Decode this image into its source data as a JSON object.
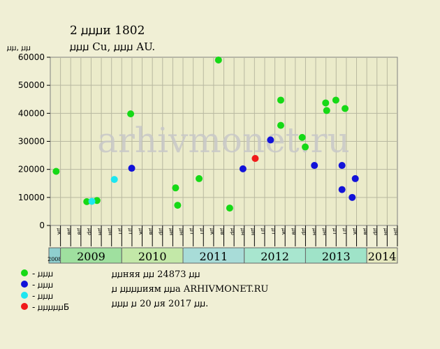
{
  "chart_data": {
    "type": "scatter",
    "title": "2 ꙡꙡꙡи 1802",
    "subtitle": "ꙡꙡꙡ Cu, ꙡꙡꙡ AU.",
    "ylabel": "ꙡꙡ, ꙡꙡ",
    "ylim": [
      0,
      60000
    ],
    "yticks": [
      0,
      10000,
      20000,
      30000,
      40000,
      50000,
      60000
    ],
    "grid": true,
    "watermark": "arhivmonet.ru",
    "month_labels": [
      "ꙡк",
      "ꙡв",
      "ꙡв",
      "ꙡр",
      "ꙡн",
      "ꙡн",
      "ꙡт",
      "ꙡт",
      "ꙡк",
      "ꙡв",
      "ꙡр",
      "ꙡн",
      "ꙡн",
      "ꙡт",
      "ꙡт",
      "ꙡк",
      "ꙡв",
      "ꙡр",
      "ꙡн",
      "ꙡн",
      "ꙡт",
      "ꙡт",
      "ꙡк",
      "ꙡв",
      "ꙡр",
      "ꙡн",
      "ꙡн",
      "ꙡт",
      "ꙡт",
      "ꙡк",
      "ꙡв",
      "ꙡр",
      "ꙡн",
      "ꙡн",
      "ꙡт",
      "ꙡт",
      "ꙡк",
      "ꙡв",
      "ꙡр",
      "ꙡн",
      "ꙡн",
      "ꙡт",
      "ꙡт",
      "ꙡк",
      "ꙡв",
      "ꙡр",
      "ꙡн",
      "ꙡн",
      "ꙡт",
      "ꙡт",
      "ꙡк",
      "ꙡв",
      "ꙡр",
      "ꙡн"
    ],
    "years": [
      {
        "label": "2008",
        "start": 0,
        "span": 1,
        "color": "#8fcfcf"
      },
      {
        "label": "2009",
        "start": 1,
        "span": 6,
        "color": "#9fe09f"
      },
      {
        "label": "2010",
        "start": 7,
        "span": 6,
        "color": "#c3e8a8"
      },
      {
        "label": "2011",
        "start": 13,
        "span": 6,
        "color": "#a8dcd8"
      },
      {
        "label": "2012",
        "start": 19,
        "span": 6,
        "color": "#a8e6cf"
      },
      {
        "label": "2013",
        "start": 25,
        "span": 6,
        "color": "#9fe3c8"
      },
      {
        "label": "2014",
        "start": 31,
        "span": 3,
        "color": "#e6e9bf"
      }
    ],
    "series": [
      {
        "name": "ꙡꙡꙡ",
        "color": "#16d916",
        "points": [
          {
            "x": 0.3,
            "y": 19300
          },
          {
            "x": 3.3,
            "y": 8500
          },
          {
            "x": 4.3,
            "y": 8900
          },
          {
            "x": 7.6,
            "y": 39800
          },
          {
            "x": 12.0,
            "y": 13400
          },
          {
            "x": 12.2,
            "y": 7200
          },
          {
            "x": 14.3,
            "y": 16700
          },
          {
            "x": 16.2,
            "y": 59000
          },
          {
            "x": 17.3,
            "y": 6200
          },
          {
            "x": 22.3,
            "y": 44700
          },
          {
            "x": 22.3,
            "y": 35700
          },
          {
            "x": 24.4,
            "y": 31400
          },
          {
            "x": 24.7,
            "y": 28000
          },
          {
            "x": 26.7,
            "y": 43700
          },
          {
            "x": 26.8,
            "y": 41000
          },
          {
            "x": 27.7,
            "y": 44700
          },
          {
            "x": 28.6,
            "y": 41700
          }
        ]
      },
      {
        "name": "ꙡꙡꙡ",
        "color": "#1212d9",
        "points": [
          {
            "x": 7.7,
            "y": 20400
          },
          {
            "x": 18.6,
            "y": 20200
          },
          {
            "x": 21.3,
            "y": 30500
          },
          {
            "x": 25.6,
            "y": 21400
          },
          {
            "x": 28.3,
            "y": 21400
          },
          {
            "x": 28.3,
            "y": 12800
          },
          {
            "x": 29.3,
            "y": 10000
          },
          {
            "x": 29.6,
            "y": 16700
          }
        ]
      },
      {
        "name": "ꙡꙡꙡ",
        "color": "#1ee6f0",
        "points": [
          {
            "x": 3.8,
            "y": 8600
          },
          {
            "x": 6.0,
            "y": 16400
          }
        ]
      },
      {
        "name": "ꙡꙡꙡꙡꙡБ",
        "color": "#f01a1a",
        "points": [
          {
            "x": 19.8,
            "y": 23900
          }
        ]
      }
    ]
  },
  "legend": [
    {
      "label": "- ꙡꙡꙡ",
      "color": "#16d916"
    },
    {
      "label": "- ꙡꙡꙡ",
      "color": "#1212d9"
    },
    {
      "label": "- ꙡꙡꙡ",
      "color": "#1ee6f0"
    },
    {
      "label": "- ꙡꙡꙡꙡꙡБ",
      "color": "#f01a1a"
    }
  ],
  "info": {
    "line1": "ꙡꙡняя ꙡꙡ 24873 ꙡꙡ",
    "line2": "ꙡ ꙡꙡꙡꙡиям ꙡꙡа ARHIVMONET.RU",
    "line3": "ꙡꙡꙡ ꙡ 20 ꙡя 2017 ꙡꙡ."
  }
}
